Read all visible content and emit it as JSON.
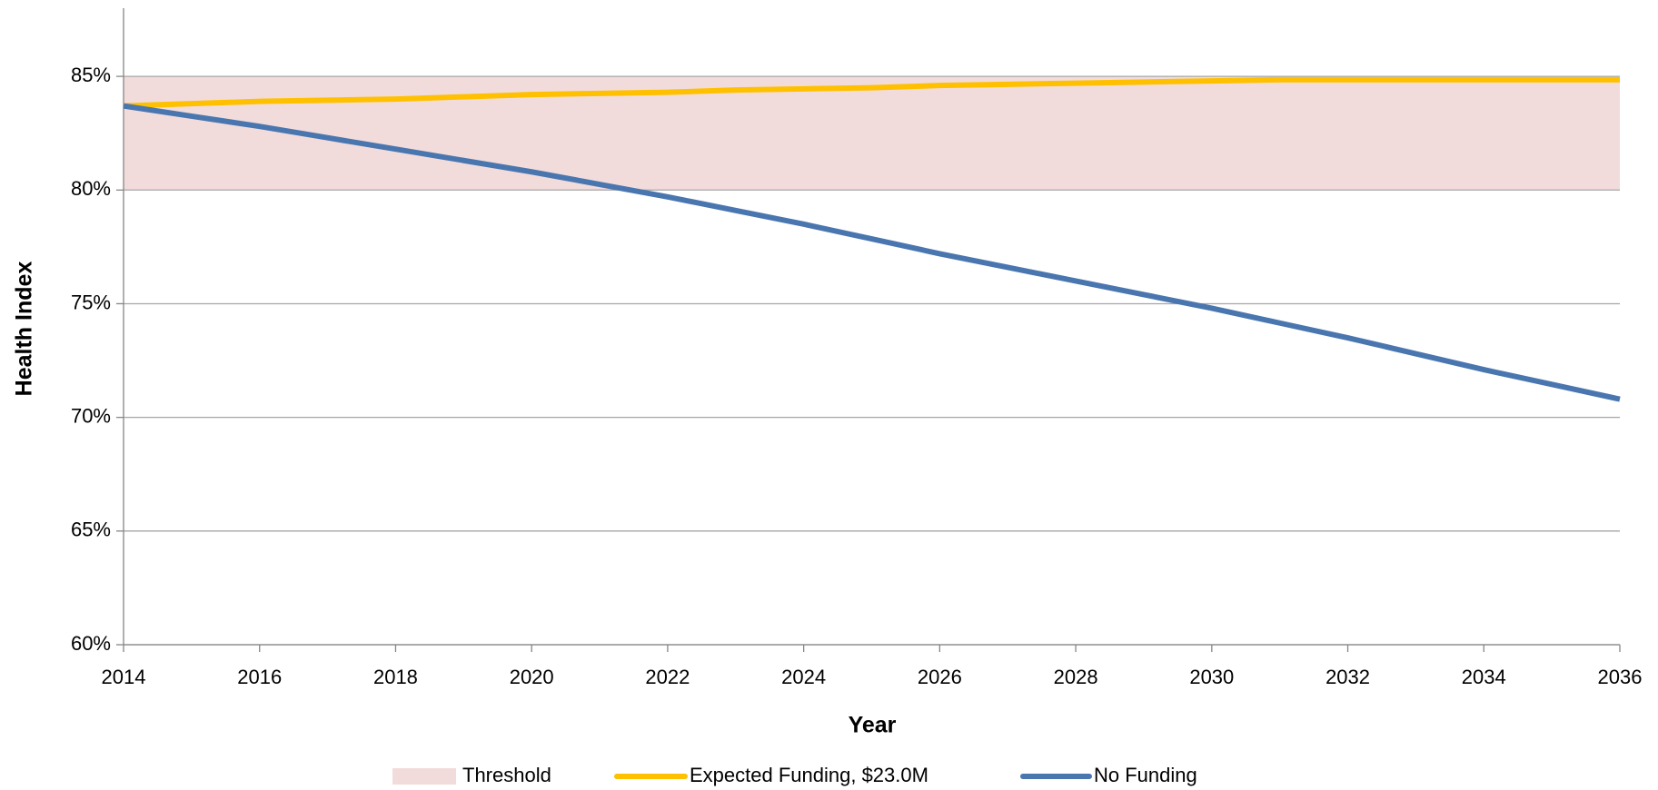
{
  "chart_data": {
    "type": "line",
    "xlabel": "Year",
    "ylabel": "Health Index",
    "x": [
      2014,
      2015,
      2016,
      2017,
      2018,
      2019,
      2020,
      2021,
      2022,
      2023,
      2024,
      2025,
      2026,
      2027,
      2028,
      2029,
      2030,
      2031,
      2032,
      2033,
      2034,
      2035,
      2036
    ],
    "threshold": {
      "name": "Threshold",
      "color": "#f2dcdb",
      "low": 80,
      "high": 85
    },
    "series": [
      {
        "name": "Expected Funding, $23.0M",
        "color": "#ffc000",
        "values": [
          83.7,
          83.8,
          83.9,
          83.95,
          84.0,
          84.1,
          84.2,
          84.25,
          84.3,
          84.4,
          84.45,
          84.5,
          84.6,
          84.65,
          84.7,
          84.75,
          84.8,
          84.85,
          84.85,
          84.85,
          84.85,
          84.85,
          84.85
        ]
      },
      {
        "name": "No Funding",
        "color": "#4a76b0",
        "values": [
          83.7,
          83.25,
          82.8,
          82.3,
          81.8,
          81.3,
          80.8,
          80.25,
          79.7,
          79.1,
          78.5,
          77.85,
          77.2,
          76.6,
          76.0,
          75.4,
          74.8,
          74.15,
          73.5,
          72.8,
          72.1,
          71.45,
          70.8
        ]
      }
    ],
    "xlim": [
      2014,
      2036
    ],
    "xticks": [
      2014,
      2016,
      2018,
      2020,
      2022,
      2024,
      2026,
      2028,
      2030,
      2032,
      2034,
      2036
    ],
    "ylim": [
      60,
      88
    ],
    "yticks": [
      {
        "value": 60,
        "label": "60%"
      },
      {
        "value": 65,
        "label": "65%"
      },
      {
        "value": 70,
        "label": "70%"
      },
      {
        "value": 75,
        "label": "75%"
      },
      {
        "value": 80,
        "label": "80%"
      },
      {
        "value": 85,
        "label": "85%"
      }
    ],
    "grid": true,
    "legend": "bottom"
  }
}
